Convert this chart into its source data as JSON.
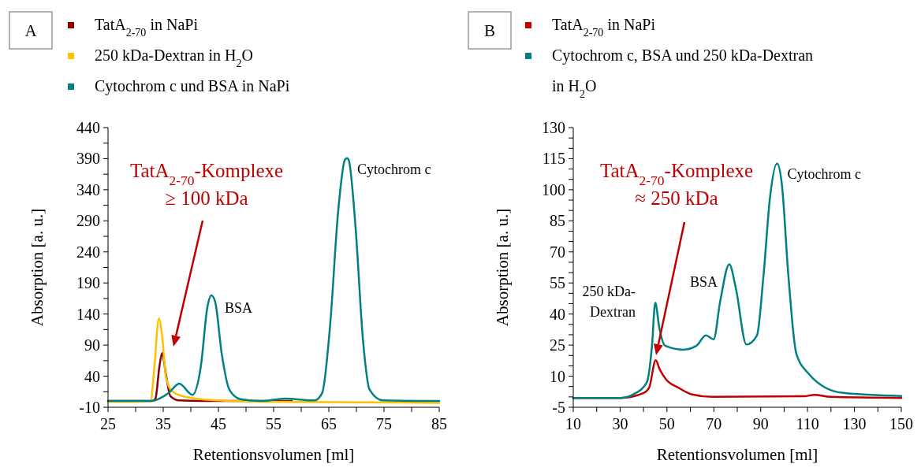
{
  "chart_data": [
    {
      "type": "line",
      "xlabel": "Retentionsvolumen [ml]",
      "ylabel": "Absorption [a. u.]",
      "legend": "top",
      "xlim": [
        25,
        85
      ],
      "ylim": [
        -10,
        440
      ],
      "xticks": [
        25,
        {
          "value": 30,
          "label": null
        },
        35,
        {
          "value": 40,
          "label": null
        },
        45,
        {
          "value": 50,
          "label": null
        },
        55,
        {
          "value": 60,
          "label": null
        },
        65,
        {
          "value": 70,
          "label": null
        },
        75,
        {
          "value": 80,
          "label": null
        },
        85
      ],
      "yticks": [
        -10,
        {
          "value": 15,
          "label": null
        },
        40,
        {
          "value": 65,
          "label": null
        },
        90,
        {
          "value": 115,
          "label": null
        },
        140,
        {
          "value": 165,
          "label": null
        },
        190,
        {
          "value": 215,
          "label": null
        },
        240,
        {
          "value": 265,
          "label": null
        },
        290,
        {
          "value": 315,
          "label": null
        },
        340,
        {
          "value": 365,
          "label": null
        },
        390,
        {
          "value": 415,
          "label": null
        },
        440
      ],
      "series": [
        {
          "name": "TatA$_{2-70}$ in NaPi",
          "color": "#8b0000",
          "x": [
            25,
            33,
            33.6,
            34.3,
            34.8,
            35.5,
            36.3,
            37.9,
            45,
            58.3
          ],
          "values": [
            0,
            0,
            4,
            55,
            77,
            42,
            8,
            1,
            0,
            0
          ]
        },
        {
          "name": "250 kDa-Dextran in H$_{2}$O",
          "color": "#ffc000",
          "x": [
            25,
            30,
            32.7,
            33.4,
            34.2,
            34.8,
            35.5,
            36.5,
            38.4,
            43.2,
            52.8,
            70,
            85
          ],
          "values": [
            -1,
            -1,
            0,
            55,
            133,
            105,
            38,
            17,
            8,
            2,
            -1,
            -2,
            -3
          ]
        },
        {
          "name": "Cytochrom c und BSA in NaPi",
          "color": "#008080",
          "x": [
            25,
            32.7,
            36,
            37.9,
            40.3,
            41.8,
            43,
            43.7,
            44.4,
            45.6,
            47,
            49,
            52.8,
            57.1,
            62.4,
            63.8,
            65.2,
            66.7,
            67.9,
            68.3,
            68.6,
            69.8,
            71.2,
            72.4,
            74.8,
            85
          ],
          "values": [
            0,
            0,
            13,
            28,
            10,
            55,
            151,
            170,
            160,
            76,
            18,
            3,
            0,
            4,
            1,
            13,
            118,
            306,
            388,
            391,
            388,
            285,
            97,
            18,
            1,
            0
          ]
        }
      ],
      "annotations": [
        "A",
        "TatA$_{2-70}$-Komplexe\n≥ 100 kDa",
        {
          "text": "BSA",
          "x": 43.7,
          "y": 170
        },
        {
          "text": "Cytochrom c",
          "x": 68.3,
          "y": 391
        }
      ]
    },
    {
      "type": "line",
      "xlabel": "Retentionsvolumen [ml]",
      "ylabel": "Absorption [a. u.]",
      "legend": "top",
      "xlim": [
        10,
        150
      ],
      "ylim": [
        -5,
        130
      ],
      "xticks": [
        10,
        {
          "value": 20,
          "label": null
        },
        30,
        {
          "value": 40,
          "label": null
        },
        50,
        {
          "value": 60,
          "label": null
        },
        70,
        {
          "value": 80,
          "label": null
        },
        90,
        {
          "value": 100,
          "label": null
        },
        110,
        {
          "value": 120,
          "label": null
        },
        130,
        {
          "value": 140,
          "label": null
        },
        150
      ],
      "yticks": [
        -5,
        {
          "value": 0,
          "label": null
        },
        {
          "value": 5,
          "label": null
        },
        10,
        {
          "value": 15,
          "label": null
        },
        {
          "value": 20,
          "label": null
        },
        25,
        {
          "value": 30,
          "label": null
        },
        {
          "value": 35,
          "label": null
        },
        40,
        {
          "value": 45,
          "label": null
        },
        {
          "value": 50,
          "label": null
        },
        55,
        {
          "value": 60,
          "label": null
        },
        {
          "value": 65,
          "label": null
        },
        70,
        {
          "value": 75,
          "label": null
        },
        {
          "value": 80,
          "label": null
        },
        85,
        {
          "value": 90,
          "label": null
        },
        {
          "value": 95,
          "label": null
        },
        100,
        {
          "value": 105,
          "label": null
        },
        {
          "value": 110,
          "label": null
        },
        115,
        {
          "value": 120,
          "label": null
        },
        {
          "value": 125,
          "label": null
        },
        130
      ],
      "series": [
        {
          "name": "TatA$_{2-70}$ in NaPi",
          "color": "#c00000",
          "x": [
            10,
            30.2,
            40.2,
            42.4,
            45.2,
            46.9,
            49.7,
            54.8,
            60.4,
            69.4,
            108.5,
            113,
            119.7,
            150
          ],
          "values": [
            -0.5,
            -0.5,
            2,
            4.5,
            17.7,
            13.3,
            8.3,
            4.5,
            1.3,
            0,
            0.3,
            1,
            0,
            -0.5
          ]
        },
        {
          "name": "Cytochrom c, BSA und 250 kDa-Dextran in H$_{2}$O",
          "color": "#008080",
          "x": [
            10,
            30.2,
            35.8,
            41.4,
            43.6,
            45,
            46.7,
            49.2,
            57,
            62.6,
            66.6,
            69.9,
            72.7,
            76.6,
            79.4,
            83.9,
            88.4,
            91.2,
            94,
            97,
            99,
            101.8,
            105.2,
            110.8,
            117.5,
            125.3,
            150
          ],
          "values": [
            -0.5,
            -0.5,
            1.3,
            7,
            24.7,
            45.5,
            33.5,
            24.7,
            22.8,
            24.7,
            29.7,
            27.8,
            46.1,
            64,
            52.4,
            25.3,
            29.7,
            58.7,
            96.6,
            112.7,
            102.9,
            58.7,
            20.9,
            10.8,
            4.5,
            1.9,
            0.4
          ]
        }
      ],
      "annotations": [
        "B",
        "TatA$_{2-70}$-Komplexe\n≈ 250 kDa",
        {
          "text": "250 kDa-\nDextran",
          "x": 45,
          "y": 45.5
        },
        {
          "text": "BSA",
          "x": 76.6,
          "y": 64
        },
        {
          "text": "Cytochrom c",
          "x": 97,
          "y": 112.7
        }
      ]
    }
  ]
}
